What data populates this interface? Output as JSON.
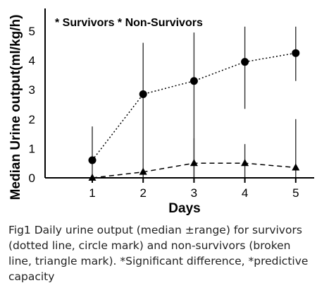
{
  "chart_data": {
    "type": "line",
    "xlabel": "Days",
    "ylabel": "Median Urine output(ml/kg/h)",
    "x": [
      1,
      2,
      3,
      4,
      5
    ],
    "xlim": [
      0,
      5.4
    ],
    "ylim": [
      0,
      5.4
    ],
    "x_ticks": [
      "1",
      "2",
      "3",
      "4",
      "5"
    ],
    "y_ticks": [
      "0",
      "1",
      "2",
      "3",
      "4",
      "5"
    ],
    "legend_text": "* Survivors * Non-Survivors",
    "legend_placement": "top-left",
    "grid": false,
    "series": [
      {
        "name": "Survivors",
        "line_style": "dotted",
        "marker": "circle",
        "values": [
          0.6,
          2.85,
          3.3,
          3.95,
          4.25
        ],
        "range_high": [
          1.75,
          4.6,
          4.95,
          5.15,
          5.15
        ],
        "range_low": [
          0.0,
          0.0,
          0.0,
          2.35,
          3.3
        ]
      },
      {
        "name": "Non-Survivors",
        "line_style": "dashed",
        "marker": "triangle",
        "values": [
          0.0,
          0.2,
          0.5,
          0.5,
          0.35
        ],
        "range_high": [
          0.0,
          0.0,
          1.35,
          1.15,
          2.0
        ],
        "range_low": [
          0.0,
          0.0,
          0.0,
          0.0,
          0.0
        ]
      }
    ]
  },
  "caption": "Fig1 Daily urine output (median ±range) for survivors (dotted line, circle mark) and non-survivors (broken line, triangle mark). *Significant difference, *predictive capacity"
}
